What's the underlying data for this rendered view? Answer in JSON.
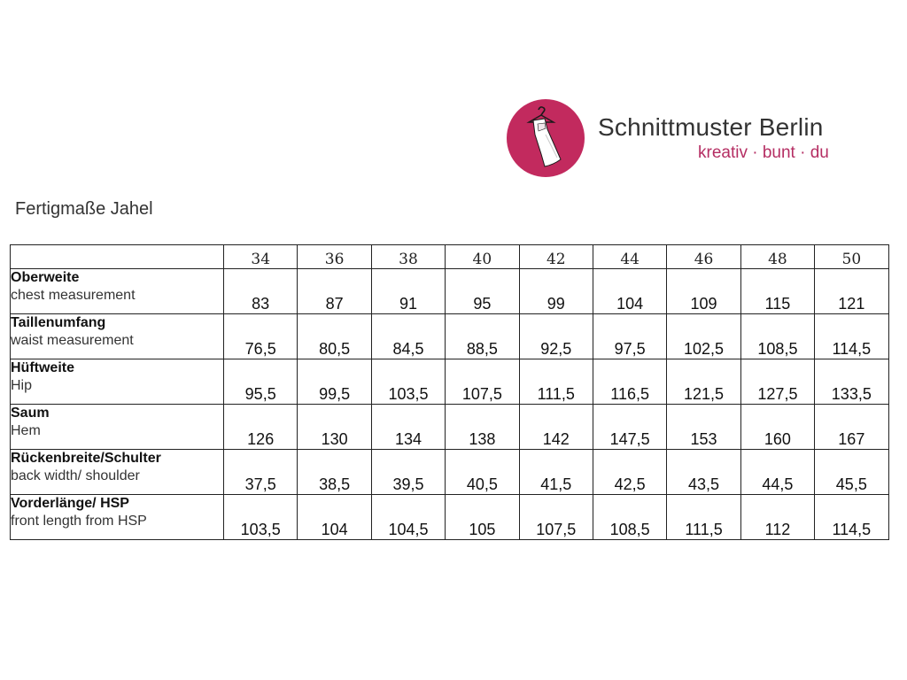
{
  "brand": {
    "name": "Schnittmuster Berlin",
    "tagline": "kreativ · bunt · du",
    "logo_color": "#c22a5e",
    "logo_icon": "dress-on-hanger-icon"
  },
  "title": "Fertigmaße Jahel",
  "table": {
    "sizes": [
      "34",
      "36",
      "38",
      "40",
      "42",
      "44",
      "46",
      "48",
      "50"
    ],
    "rows": [
      {
        "label_de": "Oberweite",
        "label_en": "chest measurement",
        "values": [
          "83",
          "87",
          "91",
          "95",
          "99",
          "104",
          "109",
          "115",
          "121"
        ]
      },
      {
        "label_de": "Taillenumfang",
        "label_en": "waist measurement",
        "values": [
          "76,5",
          "80,5",
          "84,5",
          "88,5",
          "92,5",
          "97,5",
          "102,5",
          "108,5",
          "114,5"
        ]
      },
      {
        "label_de": "Hüftweite",
        "label_en": "Hip",
        "values": [
          "95,5",
          "99,5",
          "103,5",
          "107,5",
          "111,5",
          "116,5",
          "121,5",
          "127,5",
          "133,5"
        ]
      },
      {
        "label_de": "Saum",
        "label_en": "Hem",
        "values": [
          "126",
          "130",
          "134",
          "138",
          "142",
          "147,5",
          "153",
          "160",
          "167"
        ]
      },
      {
        "label_de": "Rückenbreite/Schulter",
        "label_en": "back width/ shoulder",
        "values": [
          "37,5",
          "38,5",
          "39,5",
          "40,5",
          "41,5",
          "42,5",
          "43,5",
          "44,5",
          "45,5"
        ]
      },
      {
        "label_de": "Vorderlänge/ HSP",
        "label_en": "front length from HSP",
        "values": [
          "103,5",
          "104",
          "104,5",
          "105",
          "107,5",
          "108,5",
          "111,5",
          "112",
          "114,5"
        ]
      }
    ]
  }
}
